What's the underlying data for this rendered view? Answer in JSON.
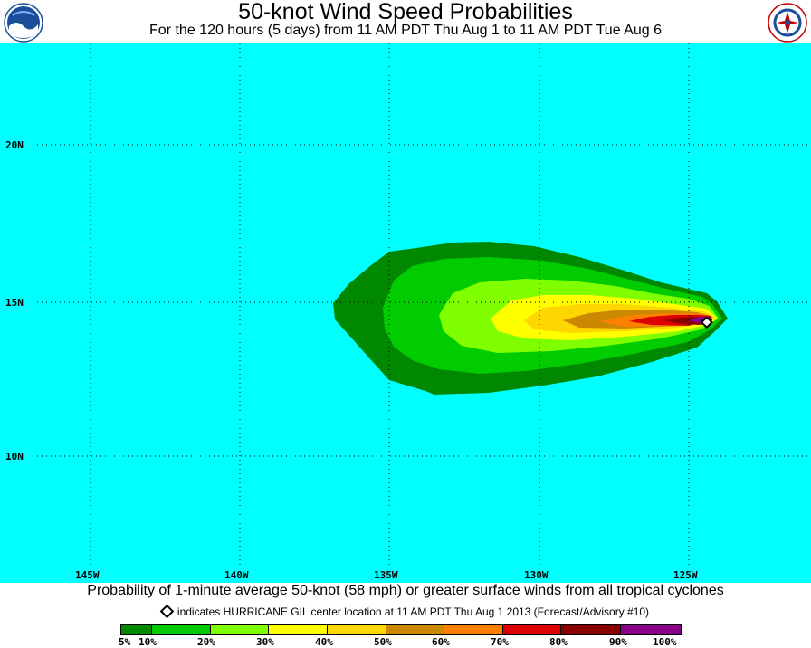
{
  "header": {
    "title": "50-knot Wind Speed Probabilities",
    "subtitle": "For the 120 hours (5 days) from 11 AM PDT Thu Aug 1 to 11 AM PDT Tue Aug 6",
    "left_logo": "noaa-logo",
    "right_logo": "national-weather-service-logo"
  },
  "map": {
    "background_color": "#00ffff",
    "grid": "dotted",
    "lat_labels": [
      "20N",
      "15N",
      "10N"
    ],
    "lon_labels": [
      "145W",
      "140W",
      "135W",
      "130W",
      "125W"
    ],
    "storm_marker": {
      "name": "HURRICANE GIL",
      "symbol": "diamond",
      "lon_deg_w": 124.4,
      "lat_deg_n": 14.3
    }
  },
  "caption": "Probability of 1-minute average 50-knot (58 mph) or greater surface winds from all tropical cyclones",
  "note": "indicates HURRICANE GIL center location at 11 AM PDT Thu Aug 1 2013 (Forecast/Advisory #10)",
  "legend": {
    "labels": [
      "5%",
      "10%",
      "20%",
      "30%",
      "40%",
      "50%",
      "60%",
      "70%",
      "80%",
      "90%",
      "100%"
    ],
    "colors": [
      "#008800",
      "#00cc00",
      "#80ff00",
      "#ffff00",
      "#ffd700",
      "#cc8800",
      "#ff8000",
      "#dd0000",
      "#880000",
      "#880088"
    ]
  }
}
